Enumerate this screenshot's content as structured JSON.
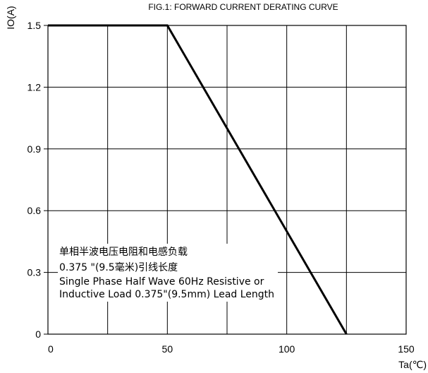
{
  "chart_data": {
    "type": "line",
    "title": "FIG.1: FORWARD CURRENT  DERATING CURVE",
    "xlabel": "Ta(℃)",
    "ylabel": "IO(A)",
    "xlim": [
      0,
      150
    ],
    "ylim": [
      0,
      1.5
    ],
    "x_ticks": [
      0,
      50,
      100,
      150
    ],
    "x_tick_labels": [
      "0",
      "50",
      "100",
      "150"
    ],
    "x_gridlines": [
      25,
      50,
      75,
      100,
      125
    ],
    "y_ticks": [
      0,
      0.3,
      0.6,
      0.9,
      1.2,
      1.5
    ],
    "y_tick_labels": [
      "0",
      "0.3",
      "0.6",
      "0.9",
      "1.2",
      "1.5"
    ],
    "grid": true,
    "series": [
      {
        "x": [
          0,
          50,
          125
        ],
        "y": [
          1.5,
          1.5,
          0
        ]
      }
    ],
    "annotation_lines": [
      "单相半波电压电阻和电感负载",
      "0.375 \"(9.5毫米)引线长度",
      "Single Phase Half Wave 60Hz Resistive or",
      "Inductive Load 0.375\"(9.5mm) Lead Length"
    ]
  }
}
